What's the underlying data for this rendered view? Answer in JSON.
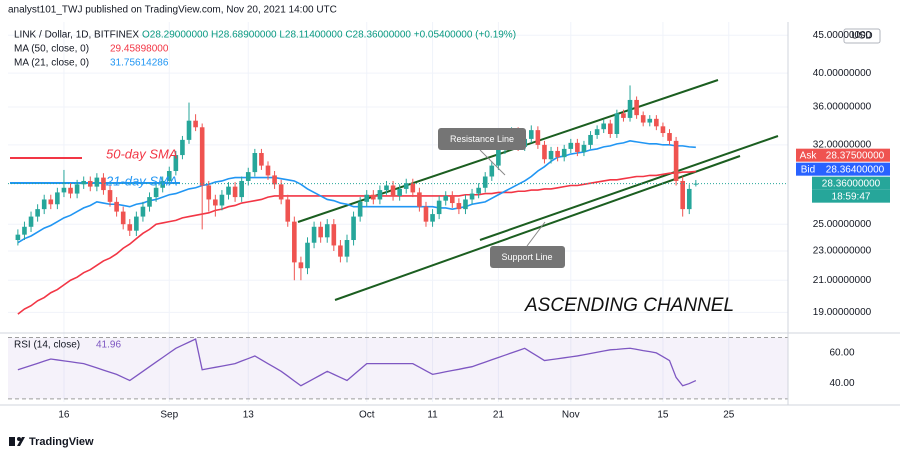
{
  "header": {
    "publisher": "analyst101_TWJ published on TradingView.com, Nov 20, 2021 14:00 UTC",
    "symbol": "LINK / Dollar, 1D, BITFINEX",
    "ohlc": "O28.29000000 H28.68900000 L28.11400000 C28.36000000 +0.05400000 (+0.19%)",
    "currency": "USD"
  },
  "chart_data": {
    "type": "candlestick",
    "log_scale": true,
    "grid": true,
    "up_color": "#26a69a",
    "down_color": "#ef5350",
    "ylim": [
      18.1,
      46.9
    ],
    "yticks": [
      {
        "value": 45,
        "label": "45.00000000"
      },
      {
        "value": 40,
        "label": "40.00000000"
      },
      {
        "value": 36,
        "label": "36.00000000"
      },
      {
        "value": 32,
        "label": "32.00000000"
      },
      {
        "value": 25,
        "label": "25.00000000"
      },
      {
        "value": 23,
        "label": "23.00000000"
      },
      {
        "value": 21,
        "label": "21.00000000"
      },
      {
        "value": 19,
        "label": "19.00000000"
      }
    ],
    "xlim": [
      -1.5,
      117
    ],
    "xticks": [
      {
        "value": 7,
        "label": "16"
      },
      {
        "value": 23,
        "label": "Sep"
      },
      {
        "value": 35,
        "label": "13"
      },
      {
        "value": 53,
        "label": "Oct"
      },
      {
        "value": 63,
        "label": "11"
      },
      {
        "value": 73,
        "label": "21"
      },
      {
        "value": 84,
        "label": "Nov"
      },
      {
        "value": 98,
        "label": "15"
      },
      {
        "value": 108,
        "label": "25"
      }
    ],
    "open": [
      23.8,
      24.2,
      24.8,
      25.6,
      26.2,
      27.0,
      26.6,
      27.6,
      28.0,
      27.5,
      28.3,
      28.6,
      28.1,
      28.9,
      27.8,
      26.8,
      26.0,
      25.0,
      24.5,
      25.6,
      26.4,
      27.2,
      28.0,
      28.6,
      29.5,
      31.0,
      32.5,
      34.5,
      33.8,
      28.2,
      27.0,
      26.5,
      27.4,
      28.1,
      27.2,
      28.6,
      29.4,
      31.2,
      30.0,
      29.1,
      28.3,
      27.0,
      25.2,
      22.2,
      21.8,
      23.6,
      24.8,
      24.0,
      25.0,
      23.4,
      22.6,
      23.8,
      25.6,
      26.8,
      27.4,
      27.0,
      27.8,
      28.2,
      27.3,
      27.9,
      28.4,
      27.6,
      26.4,
      25.2,
      25.8,
      26.9,
      27.3,
      26.7,
      26.2,
      27.0,
      27.5,
      28.0,
      29.0,
      30.0,
      31.5,
      32.8,
      33.4,
      31.8,
      32.6,
      33.5,
      32.0,
      30.6,
      31.4,
      30.8,
      31.6,
      32.2,
      31.3,
      32.0,
      33.0,
      33.6,
      34.2,
      33.1,
      35.3,
      34.8,
      36.8,
      35.1,
      34.3,
      34.7,
      33.9,
      33.2,
      32.4,
      28.6,
      26.2,
      28.29
    ],
    "high": [
      24.6,
      25.2,
      26.0,
      26.6,
      27.4,
      27.4,
      28.0,
      29.6,
      28.4,
      28.7,
      29.0,
      29.0,
      29.3,
      29.3,
      28.2,
      27.2,
      26.4,
      25.4,
      26.0,
      26.8,
      27.6,
      28.4,
      29.0,
      29.9,
      31.4,
      32.9,
      36.5,
      35.2,
      34.2,
      28.6,
      27.4,
      27.8,
      28.5,
      28.5,
      29.0,
      29.8,
      31.6,
      31.6,
      30.4,
      29.5,
      28.7,
      27.4,
      25.6,
      22.6,
      24.0,
      25.2,
      25.2,
      25.4,
      25.4,
      23.8,
      24.2,
      26.0,
      27.2,
      27.8,
      27.8,
      28.2,
      28.6,
      28.6,
      28.3,
      28.8,
      28.8,
      28.0,
      26.8,
      26.2,
      27.3,
      27.7,
      27.7,
      27.1,
      27.4,
      27.9,
      28.4,
      29.4,
      30.4,
      31.9,
      33.2,
      33.8,
      33.8,
      33.0,
      34.0,
      33.9,
      32.4,
      31.8,
      31.8,
      32.0,
      32.6,
      32.6,
      32.4,
      33.4,
      34.0,
      34.6,
      34.6,
      35.7,
      35.7,
      38.5,
      37.2,
      35.5,
      35.1,
      35.1,
      34.3,
      33.6,
      32.8,
      29.0,
      28.3,
      28.689
    ],
    "low": [
      23.4,
      23.8,
      24.4,
      25.2,
      25.8,
      26.2,
      26.2,
      27.2,
      27.1,
      27.1,
      27.9,
      27.7,
      27.7,
      27.4,
      26.4,
      25.6,
      24.6,
      24.1,
      24.1,
      25.2,
      26.0,
      26.8,
      27.6,
      28.2,
      29.1,
      30.6,
      32.1,
      33.4,
      24.6,
      26.0,
      25.6,
      26.1,
      27.0,
      26.8,
      26.8,
      28.2,
      29.0,
      29.6,
      28.7,
      27.9,
      26.6,
      24.8,
      21.0,
      21.0,
      21.4,
      23.2,
      23.6,
      23.6,
      23.0,
      22.2,
      22.2,
      23.4,
      25.2,
      26.4,
      26.6,
      26.6,
      27.4,
      26.9,
      26.9,
      27.5,
      27.2,
      26.0,
      24.8,
      24.8,
      25.4,
      26.5,
      26.3,
      25.8,
      25.8,
      26.6,
      27.1,
      27.6,
      28.6,
      29.6,
      31.1,
      32.4,
      31.4,
      31.4,
      32.2,
      31.6,
      30.2,
      30.2,
      30.4,
      30.4,
      31.2,
      30.9,
      30.9,
      31.6,
      32.6,
      33.2,
      32.7,
      32.7,
      34.4,
      34.4,
      34.7,
      33.9,
      33.9,
      33.5,
      32.8,
      32.0,
      28.2,
      25.6,
      25.8,
      28.114
    ],
    "close": [
      24.2,
      24.8,
      25.6,
      26.2,
      27.0,
      26.6,
      27.6,
      28.0,
      27.5,
      28.3,
      28.6,
      28.1,
      28.9,
      27.8,
      26.8,
      26.0,
      25.0,
      24.5,
      25.6,
      26.4,
      27.2,
      28.0,
      28.6,
      29.5,
      31.0,
      32.5,
      34.5,
      33.8,
      28.2,
      27.0,
      26.5,
      27.4,
      28.1,
      27.2,
      28.6,
      29.4,
      31.2,
      30.0,
      29.1,
      28.3,
      27.0,
      25.2,
      22.2,
      21.8,
      23.6,
      24.8,
      24.0,
      25.0,
      23.4,
      22.6,
      23.8,
      25.6,
      26.8,
      27.4,
      27.0,
      27.8,
      28.2,
      27.3,
      27.9,
      28.4,
      27.6,
      26.4,
      25.2,
      25.8,
      26.9,
      27.3,
      26.7,
      26.2,
      27.0,
      27.5,
      28.0,
      29.0,
      30.0,
      31.5,
      32.8,
      33.4,
      31.8,
      32.6,
      33.5,
      32.0,
      30.6,
      31.4,
      30.8,
      31.6,
      32.2,
      31.3,
      32.0,
      33.0,
      33.6,
      34.2,
      33.1,
      35.3,
      34.8,
      36.8,
      35.1,
      34.3,
      34.7,
      33.9,
      33.2,
      32.4,
      28.6,
      26.2,
      27.9,
      28.36
    ],
    "series": [
      {
        "name": "MA (50, close, 0)",
        "legend_value": "29.45898000",
        "color": "#f23645",
        "values": [
          18.9,
          19.2,
          19.4,
          19.7,
          19.9,
          20.2,
          20.4,
          20.7,
          21.0,
          21.2,
          21.5,
          21.7,
          22.0,
          22.3,
          22.5,
          22.8,
          23.2,
          23.5,
          23.9,
          24.3,
          24.6,
          25.0,
          25.1,
          25.2,
          25.3,
          25.5,
          25.6,
          25.7,
          25.8,
          25.9,
          26.1,
          26.2,
          26.4,
          26.5,
          26.7,
          26.8,
          26.9,
          27.0,
          27.2,
          27.3,
          27.3,
          27.3,
          27.3,
          27.3,
          27.3,
          27.3,
          27.3,
          27.3,
          27.3,
          27.3,
          27.3,
          27.3,
          27.3,
          27.3,
          27.3,
          27.3,
          27.3,
          27.3,
          27.3,
          27.3,
          27.3,
          27.3,
          27.3,
          27.3,
          27.3,
          27.3,
          27.3,
          27.3,
          27.4,
          27.4,
          27.4,
          27.5,
          27.5,
          27.6,
          27.6,
          27.6,
          27.7,
          27.7,
          27.8,
          27.8,
          27.9,
          27.9,
          28.0,
          28.1,
          28.2,
          28.2,
          28.3,
          28.4,
          28.5,
          28.6,
          28.7,
          28.7,
          28.8,
          28.9,
          29.0,
          29.0,
          29.1,
          29.1,
          29.2,
          29.3,
          29.3,
          29.4,
          29.4,
          29.46
        ]
      },
      {
        "name": "MA (21, close, 0)",
        "legend_value": "31.75614286",
        "color": "#2196f3",
        "values": [
          23.6,
          23.9,
          24.1,
          24.4,
          24.7,
          24.9,
          25.2,
          25.5,
          25.7,
          26.0,
          26.3,
          26.5,
          26.8,
          26.7,
          26.6,
          26.6,
          26.5,
          26.4,
          26.6,
          26.7,
          26.9,
          27.0,
          27.2,
          27.4,
          27.5,
          27.7,
          27.9,
          28.0,
          28.2,
          28.3,
          28.5,
          28.6,
          28.8,
          28.9,
          28.9,
          28.9,
          28.9,
          28.9,
          28.9,
          28.9,
          28.8,
          28.7,
          28.6,
          28.3,
          27.9,
          27.6,
          27.3,
          27.0,
          26.9,
          26.7,
          26.6,
          26.4,
          26.4,
          26.4,
          26.4,
          26.4,
          26.4,
          26.4,
          26.4,
          26.4,
          26.4,
          26.4,
          26.4,
          26.4,
          26.3,
          26.3,
          26.2,
          26.3,
          26.4,
          26.6,
          26.7,
          26.8,
          27.1,
          27.4,
          27.7,
          28.0,
          28.3,
          28.6,
          29.0,
          29.5,
          29.9,
          30.4,
          30.8,
          30.9,
          31.1,
          31.2,
          31.3,
          31.5,
          31.6,
          31.8,
          31.9,
          32.1,
          32.2,
          32.4,
          32.3,
          32.2,
          32.1,
          32.1,
          32.0,
          32.0,
          31.9,
          31.9,
          31.8,
          31.76
        ]
      }
    ]
  },
  "price_labels": {
    "ask_label": "Ask",
    "ask": "28.37500000",
    "bid_label": "Bid",
    "bid": "28.36400000",
    "last": "28.36000000",
    "countdown": "18:59:47"
  },
  "rsi": {
    "name": "RSI (14, close)",
    "legend_value": "41.96",
    "color": "#7e57c2",
    "ylim": [
      28,
      71
    ],
    "yticks": [
      {
        "value": 60,
        "label": "60.00"
      },
      {
        "value": 40,
        "label": "40.00"
      }
    ],
    "bands": [
      70,
      30
    ],
    "values": [
      49,
      50.4,
      51.8,
      53.2,
      54.6,
      56,
      55.4,
      54.8,
      54.2,
      53.6,
      53,
      51.6,
      50.2,
      48.8,
      47.4,
      46,
      44,
      42,
      45,
      48,
      51,
      54,
      57,
      60,
      63,
      65,
      67,
      69,
      49,
      49.8,
      50.6,
      51.4,
      52.2,
      53,
      54.7,
      56.3,
      58,
      55.5,
      53,
      50.5,
      48,
      44.9,
      41.7,
      38.6,
      40.9,
      43.3,
      45.6,
      48,
      46,
      44,
      42,
      45.7,
      49.3,
      53,
      53,
      53,
      53,
      53,
      53,
      53,
      53,
      50.7,
      48.3,
      46,
      46.8,
      47.7,
      48.5,
      49.3,
      50.2,
      51,
      52.5,
      54,
      55.5,
      57,
      58.5,
      60,
      61.5,
      63,
      60.3,
      57.7,
      55,
      55.6,
      56.2,
      56.8,
      57.4,
      58,
      58.8,
      59.6,
      60.4,
      61.2,
      62,
      62.3,
      62.7,
      63,
      62.3,
      61.5,
      60.8,
      60,
      57.5,
      55,
      44,
      38.6,
      40,
      41.96
    ]
  },
  "annotations": {
    "sma50": "50-day SMA",
    "sma21": "21-day SMA",
    "resistance": "Resistance Line",
    "support": "Support Line",
    "channel": "ASCENDING CHANNEL"
  },
  "footer": "TradingView"
}
